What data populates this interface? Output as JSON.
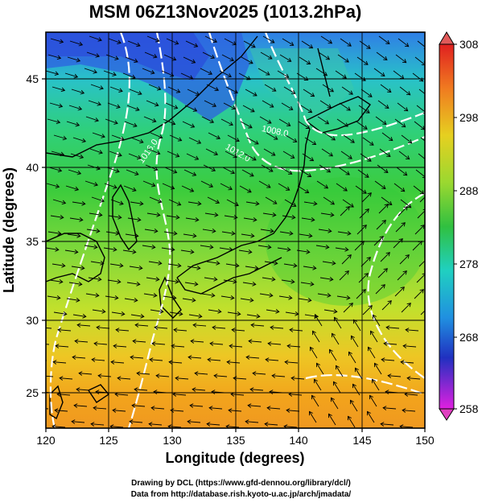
{
  "title": "MSM 06Z13Nov2025 (1013.2hPa)",
  "xlabel": "Longitude (degrees)",
  "ylabel": "Latitude  (degrees)",
  "x_ticks": [
    "120",
    "125",
    "130",
    "135",
    "140",
    "145",
    "150"
  ],
  "y_ticks": [
    "25",
    "30",
    "35",
    "40",
    "45"
  ],
  "colorbar": {
    "ticks": [
      "308",
      "298",
      "288",
      "278",
      "268",
      "258"
    ],
    "min": 258,
    "max": 308
  },
  "contour_labels": [
    "1016.0",
    "1012.0",
    "1008.0"
  ],
  "credits": {
    "line1": "Drawing by DCL (https://www.gfd-dennou.org/library/dcl/)",
    "line2": "Data from http://database.rish.kyoto-u.ac.jp/arch/jmadata/"
  },
  "colors": {
    "cold": "#2040e0",
    "cyan": "#20d0c0",
    "green": "#30c040",
    "yellow": "#e0e020",
    "orange": "#f0a020",
    "red": "#e03020",
    "magenta": "#e020e0"
  }
}
